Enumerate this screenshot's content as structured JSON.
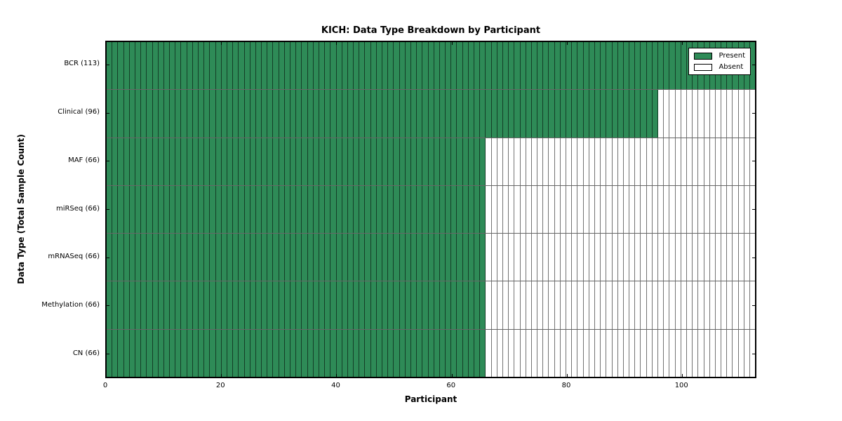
{
  "chart_data": {
    "type": "heatmap",
    "title": "KICH: Data Type Breakdown by Participant",
    "xlabel": "Participant",
    "ylabel": "Data Type (Total Sample Count)",
    "xlim": [
      0,
      113
    ],
    "x_ticks": [
      0,
      20,
      40,
      60,
      80,
      100
    ],
    "total_participants": 113,
    "grid": "cell-borders",
    "legend_position": "upper-right-inside",
    "rows": [
      {
        "data_type": "BCR",
        "label": "BCR (113)",
        "present_count": 113,
        "absent_count": 0
      },
      {
        "data_type": "Clinical",
        "label": "Clinical (96)",
        "present_count": 96,
        "absent_count": 17
      },
      {
        "data_type": "MAF",
        "label": "MAF (66)",
        "present_count": 66,
        "absent_count": 47
      },
      {
        "data_type": "miRSeq",
        "label": "miRSeq (66)",
        "present_count": 66,
        "absent_count": 47
      },
      {
        "data_type": "mRNASeq",
        "label": "mRNASeq (66)",
        "present_count": 66,
        "absent_count": 47
      },
      {
        "data_type": "Methylation",
        "label": "Methylation (66)",
        "present_count": 66,
        "absent_count": 47
      },
      {
        "data_type": "CN",
        "label": "CN (66)",
        "present_count": 66,
        "absent_count": 47
      }
    ],
    "legend": [
      {
        "label": "Present",
        "color": "#2e8b57"
      },
      {
        "label": "Absent",
        "color": "#ffffff"
      }
    ],
    "colors": {
      "present": "#2e8b57",
      "absent": "#ffffff",
      "cell_border": "#000000",
      "axes": "#000000",
      "background": "#ffffff"
    }
  }
}
